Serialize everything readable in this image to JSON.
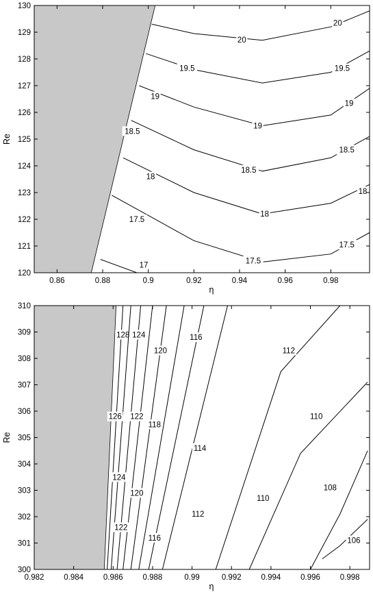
{
  "chart_data": [
    {
      "type": "contour",
      "xlabel": "η",
      "ylabel": "Re",
      "xlim": [
        0.85,
        0.997
      ],
      "ylim": [
        120,
        130
      ],
      "x_ticks": [
        "0.86",
        "0.88",
        "0.9",
        "0.92",
        "0.94",
        "0.96",
        "0.98"
      ],
      "y_ticks": [
        "120",
        "121",
        "122",
        "123",
        "124",
        "125",
        "126",
        "127",
        "128",
        "129",
        "130"
      ],
      "shaded_region": {
        "color": "#c8c8c8",
        "boundary": [
          [
            0.875,
            120
          ],
          [
            0.903,
            130
          ]
        ]
      },
      "contours": [
        {
          "level": "20",
          "points": [
            [
              0.9015,
              129.3
            ],
            [
              0.92,
              128.95
            ],
            [
              0.95,
              128.7
            ],
            [
              0.98,
              129.2
            ],
            [
              0.997,
              129.8
            ]
          ],
          "labels": [
            [
              0.941,
              128.72
            ],
            [
              0.983,
              129.35
            ]
          ]
        },
        {
          "level": "19.5",
          "points": [
            [
              0.899,
              128.2
            ],
            [
              0.92,
              127.6
            ],
            [
              0.95,
              127.1
            ],
            [
              0.98,
              127.5
            ],
            [
              0.997,
              128.3
            ]
          ],
          "labels": [
            [
              0.917,
              127.65
            ],
            [
              0.985,
              127.65
            ]
          ]
        },
        {
          "level": "19",
          "points": [
            [
              0.896,
              127.0
            ],
            [
              0.92,
              126.2
            ],
            [
              0.95,
              125.5
            ],
            [
              0.98,
              125.9
            ],
            [
              0.997,
              126.9
            ]
          ],
          "labels": [
            [
              0.903,
              126.6
            ],
            [
              0.948,
              125.5
            ],
            [
              0.988,
              126.35
            ]
          ]
        },
        {
          "level": "18.5",
          "points": [
            [
              0.8925,
              125.7
            ],
            [
              0.92,
              124.6
            ],
            [
              0.95,
              123.8
            ],
            [
              0.98,
              124.3
            ],
            [
              0.997,
              125.1
            ]
          ],
          "labels": [
            [
              0.893,
              125.3
            ],
            [
              0.944,
              123.85
            ],
            [
              0.987,
              124.6
            ]
          ]
        },
        {
          "level": "18",
          "points": [
            [
              0.889,
              124.3
            ],
            [
              0.92,
              123.0
            ],
            [
              0.95,
              122.2
            ],
            [
              0.98,
              122.6
            ],
            [
              0.997,
              123.3
            ]
          ],
          "labels": [
            [
              0.901,
              123.6
            ],
            [
              0.951,
              122.2
            ],
            [
              0.994,
              123.05
            ]
          ]
        },
        {
          "level": "17.5",
          "points": [
            [
              0.884,
              122.9
            ],
            [
              0.92,
              121.2
            ],
            [
              0.95,
              120.4
            ],
            [
              0.98,
              120.7
            ],
            [
              0.997,
              121.5
            ]
          ],
          "labels": [
            [
              0.895,
              122.0
            ],
            [
              0.946,
              120.45
            ],
            [
              0.987,
              121.05
            ]
          ]
        },
        {
          "level": "17",
          "points": [
            [
              0.879,
              120.5
            ],
            [
              0.895,
              120.0
            ]
          ],
          "labels": [
            [
              0.898,
              120.3
            ]
          ]
        }
      ]
    },
    {
      "type": "contour",
      "xlabel": "η",
      "ylabel": "Re",
      "xlim": [
        0.982,
        0.999
      ],
      "ylim": [
        300,
        310
      ],
      "x_ticks": [
        "0.982",
        "0.984",
        "0.986",
        "0.988",
        "0.99",
        "0.992",
        "0.994",
        "0.996",
        "0.998"
      ],
      "y_ticks": [
        "300",
        "301",
        "302",
        "303",
        "304",
        "305",
        "306",
        "307",
        "308",
        "309",
        "310"
      ],
      "shaded_region": {
        "color": "#c8c8c8",
        "boundary": [
          [
            0.98555,
            300
          ],
          [
            0.98615,
            310
          ]
        ]
      },
      "contours": [
        {
          "level": "128",
          "points": [
            [
              0.9857,
              300
            ],
            [
              0.9865,
              310
            ]
          ],
          "labels": [
            [
              0.9865,
              308.9
            ]
          ]
        },
        {
          "level": "126",
          "points": [
            [
              0.9859,
              300
            ],
            [
              0.9869,
              310
            ]
          ],
          "labels": [
            [
              0.9861,
              305.8
            ]
          ]
        },
        {
          "level": "124",
          "points": [
            [
              0.9862,
              300
            ],
            [
              0.9874,
              310
            ]
          ],
          "labels": [
            [
              0.9863,
              303.5
            ],
            [
              0.9873,
              308.9
            ]
          ]
        },
        {
          "level": "122",
          "points": [
            [
              0.9865,
              300
            ],
            [
              0.988,
              310
            ]
          ],
          "labels": [
            [
              0.9864,
              301.6
            ],
            [
              0.9872,
              305.8
            ]
          ]
        },
        {
          "level": "120",
          "points": [
            [
              0.9869,
              300
            ],
            [
              0.9887,
              310
            ]
          ],
          "labels": [
            [
              0.9872,
              302.9
            ],
            [
              0.9884,
              308.3
            ]
          ]
        },
        {
          "level": "118",
          "points": [
            [
              0.9873,
              300
            ],
            [
              0.9896,
              310
            ]
          ],
          "labels": [
            [
              0.9881,
              305.5
            ]
          ]
        },
        {
          "level": "116",
          "points": [
            [
              0.9878,
              300
            ],
            [
              0.9906,
              310
            ]
          ],
          "labels": [
            [
              0.9881,
              301.2
            ],
            [
              0.9902,
              308.8
            ]
          ]
        },
        {
          "level": "114",
          "points": [
            [
              0.9885,
              300
            ],
            [
              0.9918,
              310
            ]
          ],
          "labels": [
            [
              0.9904,
              304.6
            ]
          ]
        },
        {
          "level": "112",
          "points": [
            [
              0.9912,
              300
            ],
            [
              0.9945,
              307.5
            ],
            [
              0.9975,
              310
            ]
          ],
          "labels": [
            [
              0.9903,
              302.1
            ],
            [
              0.9949,
              308.3
            ]
          ]
        },
        {
          "level": "110",
          "points": [
            [
              0.9929,
              300
            ],
            [
              0.9955,
              304.4
            ],
            [
              0.9989,
              307.1
            ]
          ],
          "labels": [
            [
              0.9936,
              302.7
            ],
            [
              0.9963,
              305.8
            ]
          ]
        },
        {
          "level": "108",
          "points": [
            [
              0.996,
              300
            ],
            [
              0.9975,
              302.1
            ],
            [
              0.9989,
              304.5
            ]
          ],
          "labels": [
            [
              0.997,
              303.1
            ]
          ]
        },
        {
          "level": "106",
          "points": [
            [
              0.9966,
              300.4
            ],
            [
              0.9975,
              300.9
            ],
            [
              0.9989,
              301.9
            ]
          ],
          "labels": [
            [
              0.9982,
              301.1
            ]
          ]
        }
      ]
    }
  ]
}
